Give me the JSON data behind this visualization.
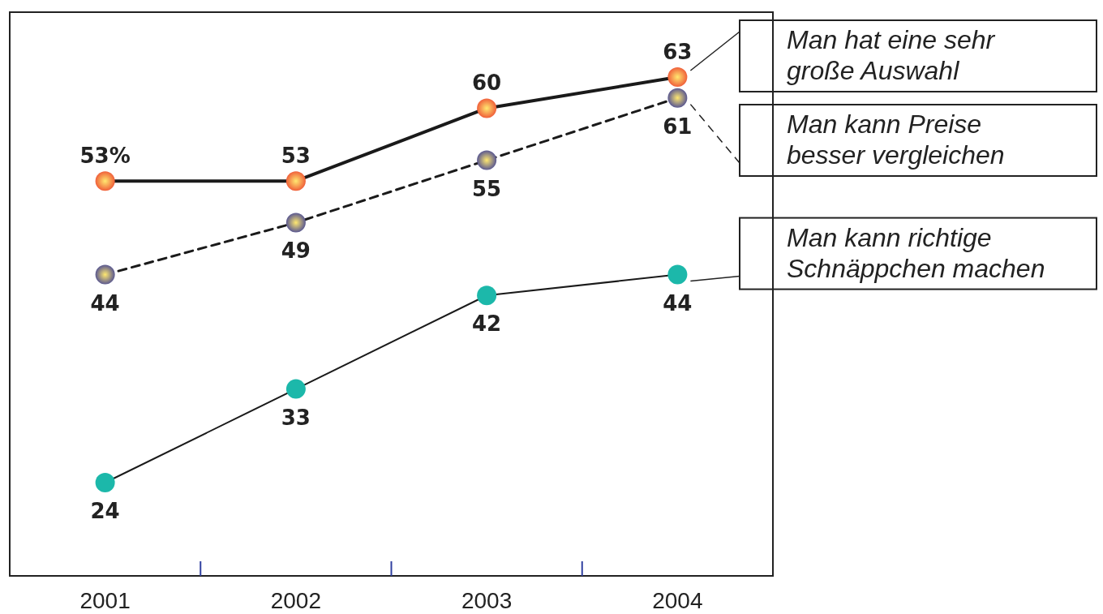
{
  "chart_data": {
    "type": "line",
    "categories": [
      "2001",
      "2002",
      "2003",
      "2004"
    ],
    "series": [
      {
        "name": "Man hat eine sehr große Auswahl",
        "color": "#f0603a",
        "values": [
          53,
          53,
          60,
          63
        ],
        "value_labels": [
          "53%",
          "53",
          "60",
          "63"
        ],
        "line_style": "solid"
      },
      {
        "name": "Man kann Preise besser vergleichen",
        "color": "#5a5890",
        "values": [
          44,
          49,
          55,
          61
        ],
        "value_labels": [
          "44",
          "49",
          "55",
          "61"
        ],
        "line_style": "dashed"
      },
      {
        "name": "Man kann richtige Schnäppchen machen",
        "color": "#1cb8aa",
        "values": [
          24,
          33,
          42,
          44
        ],
        "value_labels": [
          "24",
          "33",
          "42",
          "44"
        ],
        "line_style": "solid"
      }
    ],
    "marker": "circle",
    "legend": "right",
    "grid": false
  }
}
